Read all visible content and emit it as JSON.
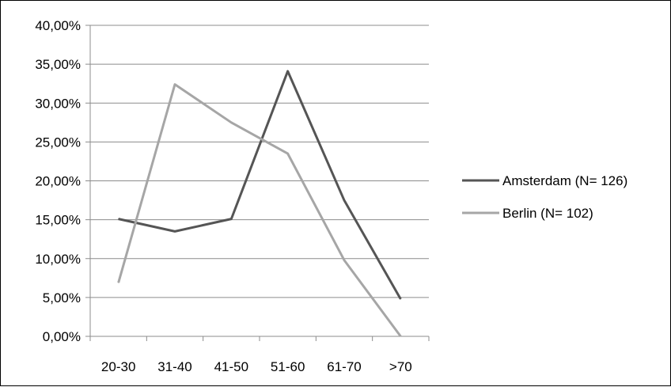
{
  "chart_data": {
    "type": "line",
    "categories": [
      "20-30",
      "31-40",
      "41-50",
      "51-60",
      "61-70",
      ">70"
    ],
    "series": [
      {
        "name": "Amsterdam (N= 126)",
        "values": [
          15.1,
          13.5,
          15.1,
          34.1,
          17.5,
          4.8
        ],
        "color": "#555555"
      },
      {
        "name": "Berlin (N= 102)",
        "values": [
          6.9,
          32.4,
          27.5,
          23.5,
          9.8,
          0.0
        ],
        "color": "#a6a6a6"
      }
    ],
    "y_ticks": [
      "0,00%",
      "5,00%",
      "10,00%",
      "15,00%",
      "20,00%",
      "25,00%",
      "30,00%",
      "35,00%",
      "40,00%"
    ],
    "ylim": [
      0,
      40
    ],
    "title": "",
    "xlabel": "",
    "ylabel": "",
    "grid": true,
    "legend_position": "right"
  }
}
